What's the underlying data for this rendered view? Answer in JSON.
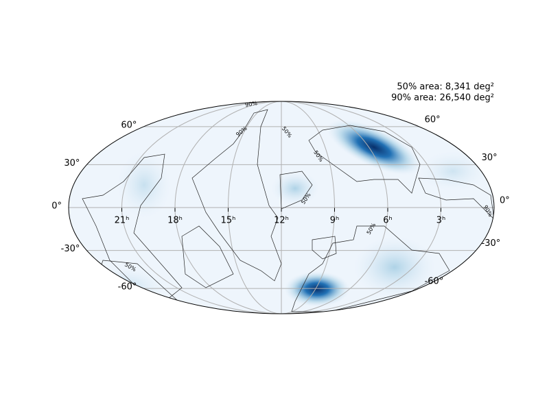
{
  "chart_data": {
    "type": "mollweide",
    "annotations": [
      "50% area: 8,341 deg²",
      "90% area: 26,540 deg²"
    ],
    "xticks": [
      {
        "value": 21,
        "label": "21ʰ"
      },
      {
        "value": 18,
        "label": "18ʰ"
      },
      {
        "value": 15,
        "label": "15ʰ"
      },
      {
        "value": 12,
        "label": "12ʰ"
      },
      {
        "value": 9,
        "label": "9ʰ"
      },
      {
        "value": 6,
        "label": "6ʰ"
      },
      {
        "value": 3,
        "label": "3ʰ"
      }
    ],
    "yticks": [
      {
        "value": 60,
        "label": "60°"
      },
      {
        "value": 30,
        "label": "30°"
      },
      {
        "value": 0,
        "label": "0°"
      },
      {
        "value": -30,
        "label": "-30°"
      },
      {
        "value": -60,
        "label": "-60°"
      }
    ],
    "contour_labels": [
      "90%",
      "90%",
      "50%",
      "50%",
      "50%",
      "50%",
      "90%",
      "50%"
    ],
    "grid": true,
    "color": "#b0b0b0"
  }
}
